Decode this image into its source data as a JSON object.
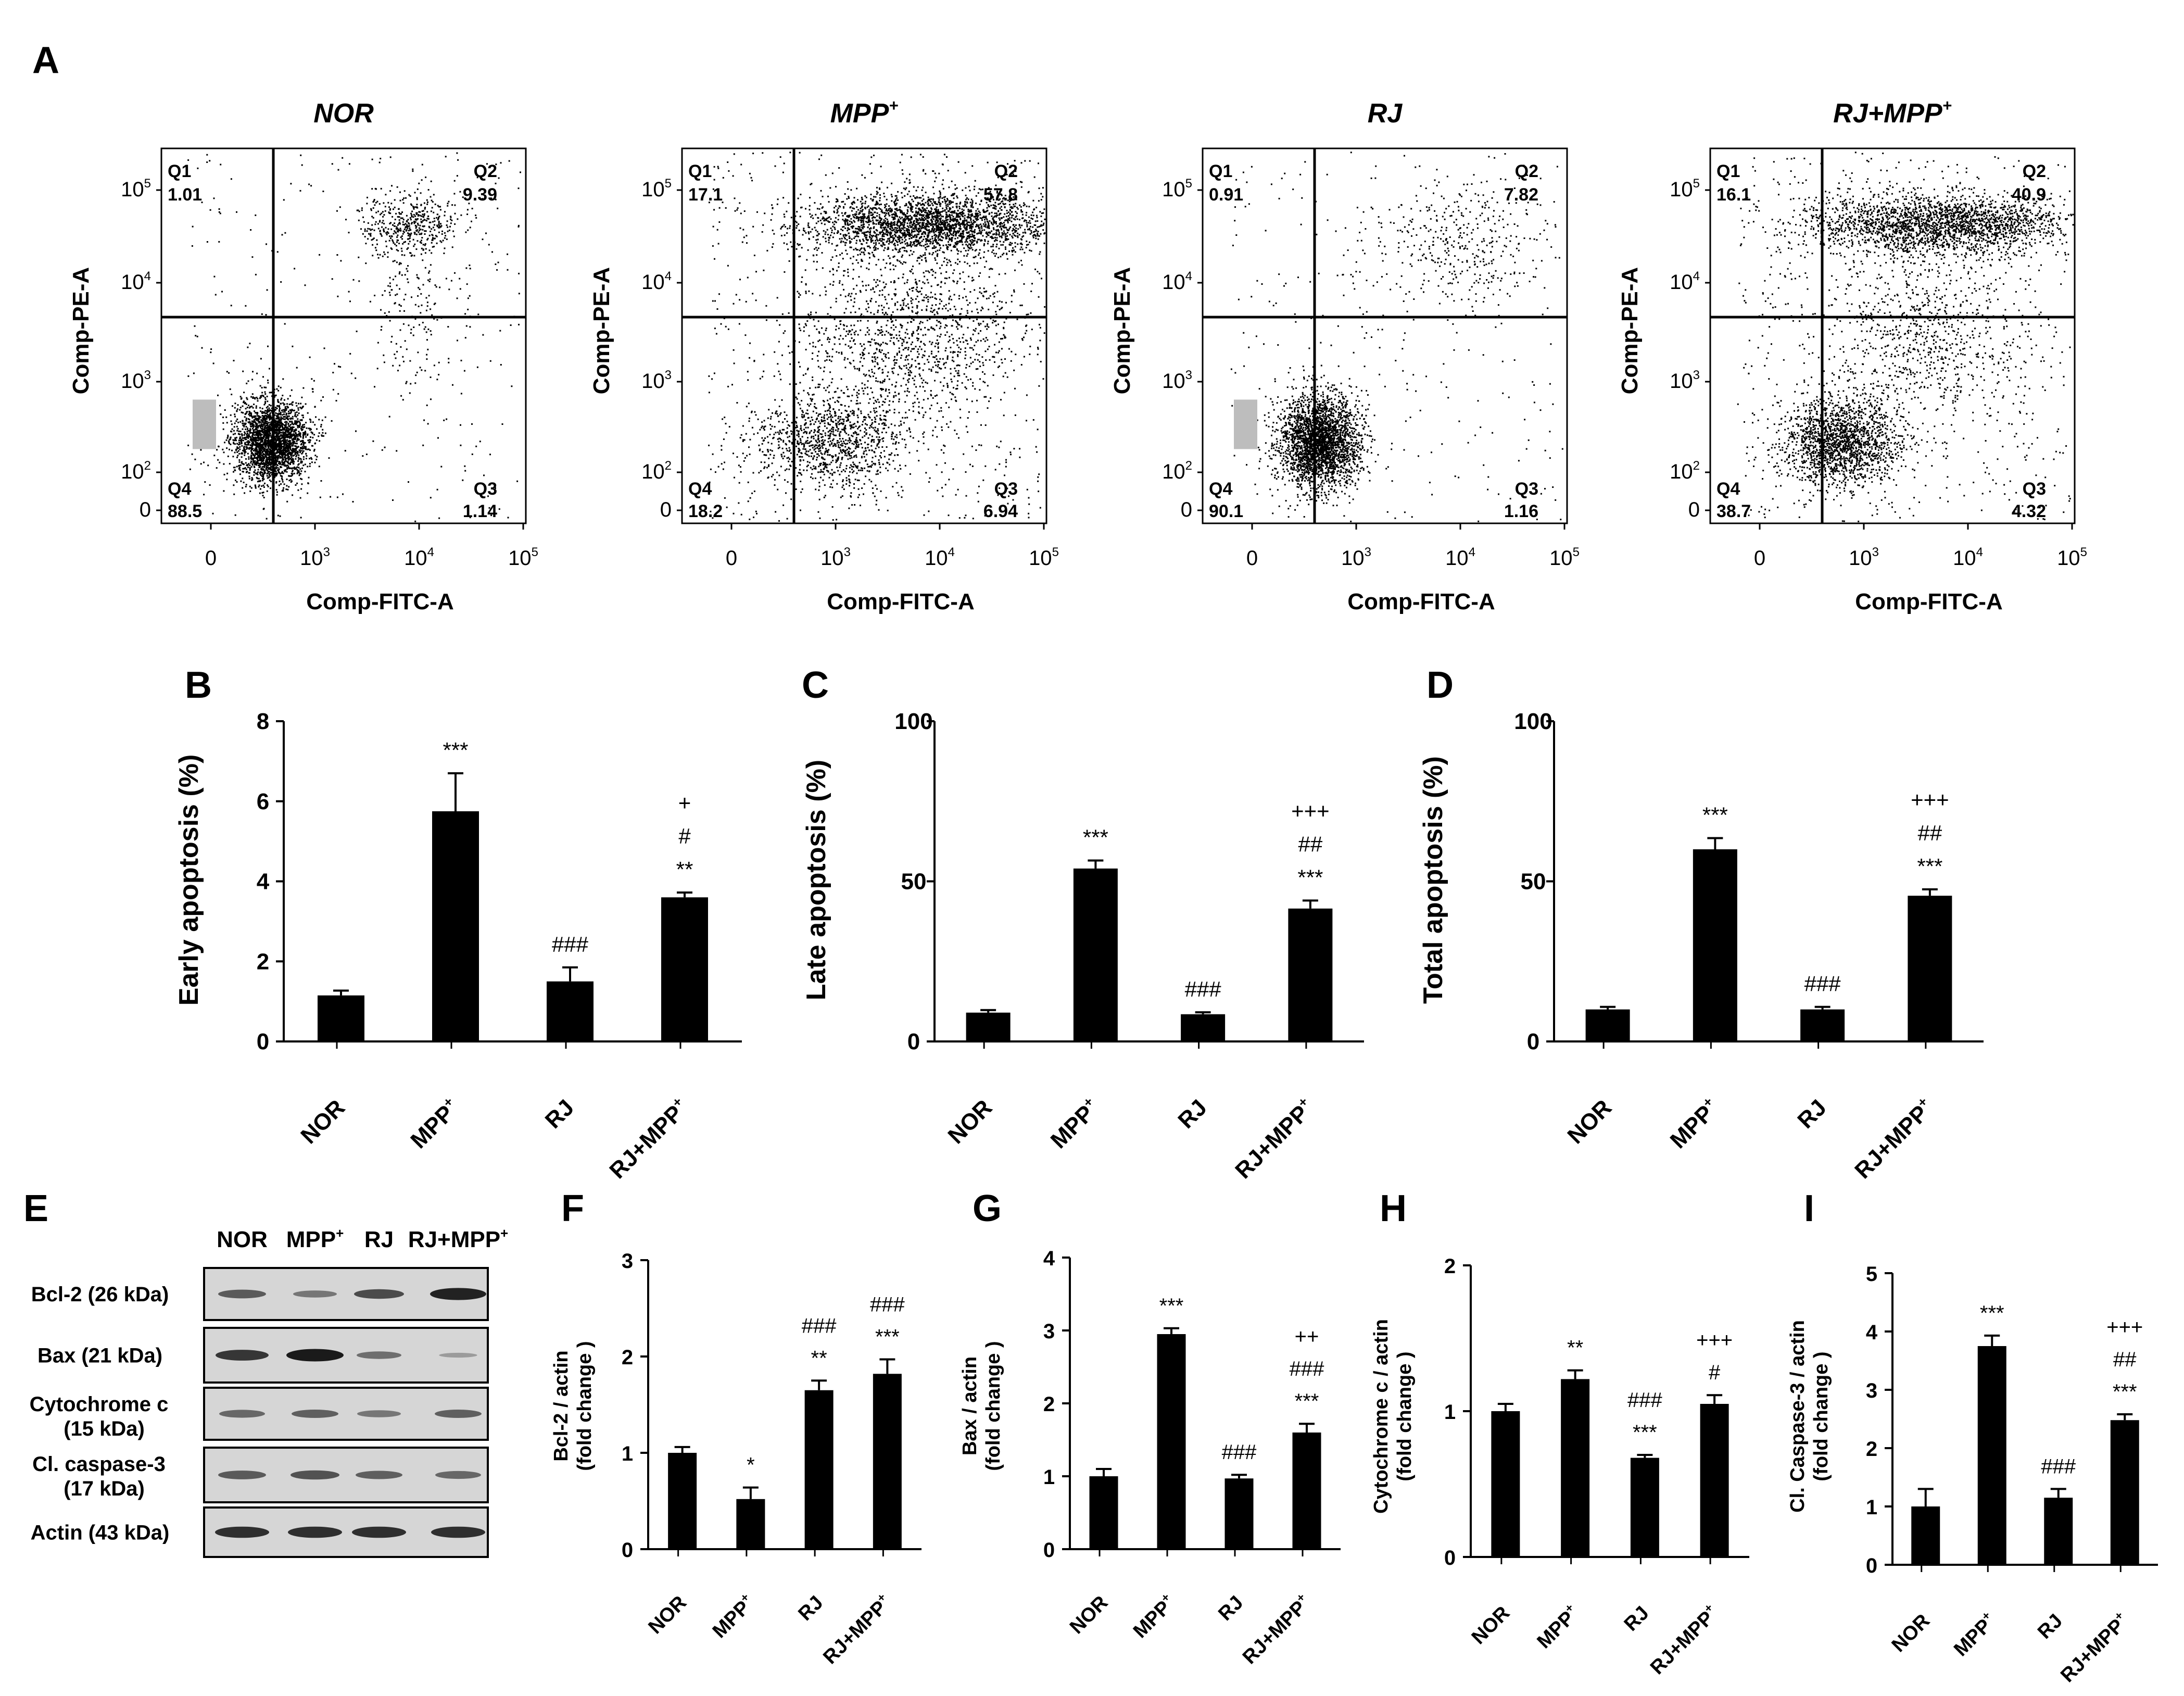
{
  "colors": {
    "ink": "#000000",
    "blot_bg": "#d6d6d6",
    "band": "#1a1a1a",
    "gate": "#bdbdbd"
  },
  "panel_letters": [
    "A",
    "B",
    "C",
    "D",
    "E",
    "F",
    "G",
    "H",
    "I"
  ],
  "flow": {
    "xlabel": "Comp-FITC-A",
    "ylabel": "Comp-PE-A",
    "xticks": [
      "0",
      "10",
      "10",
      "10"
    ],
    "xtick_sup": [
      "",
      "3",
      "4",
      "5"
    ],
    "yticks": [
      "10",
      "10",
      "10",
      "10",
      "0"
    ],
    "ytick_sup": [
      "5",
      "4",
      "3",
      "2",
      ""
    ],
    "quadrant_labels": [
      "Q1",
      "Q2",
      "Q3",
      "Q4"
    ],
    "plots": [
      {
        "title": "NOR",
        "title_sup": "",
        "Q1": "1.01",
        "Q2": "9.39",
        "Q3": "1.14",
        "Q4": "88.5",
        "clusters": [
          {
            "cx": 0.3,
            "cy": 0.78,
            "sx": 0.05,
            "sy": 0.055,
            "n": 2600,
            "grey": true
          },
          {
            "cx": 0.68,
            "cy": 0.2,
            "sx": 0.07,
            "sy": 0.04,
            "n": 450
          },
          {
            "cx": 0.68,
            "cy": 0.4,
            "sx": 0.06,
            "sy": 0.12,
            "n": 150
          }
        ],
        "noise": 300
      },
      {
        "title": "MPP",
        "title_sup": "+",
        "Q1": "17.1",
        "Q2": "57.8",
        "Q3": "6.94",
        "Q4": "18.2",
        "clusters": [
          {
            "cx": 0.68,
            "cy": 0.2,
            "sx": 0.17,
            "sy": 0.04,
            "n": 2600
          },
          {
            "cx": 0.4,
            "cy": 0.78,
            "sx": 0.1,
            "sy": 0.06,
            "n": 1000
          },
          {
            "cx": 0.62,
            "cy": 0.5,
            "sx": 0.15,
            "sy": 0.13,
            "n": 1200
          }
        ],
        "noise": 700
      },
      {
        "title": "RJ",
        "title_sup": "",
        "Q1": "0.91",
        "Q2": "7.82",
        "Q3": "1.16",
        "Q4": "90.1",
        "clusters": [
          {
            "cx": 0.32,
            "cy": 0.78,
            "sx": 0.055,
            "sy": 0.06,
            "n": 2700,
            "grey": true
          },
          {
            "cx": 0.7,
            "cy": 0.25,
            "sx": 0.12,
            "sy": 0.08,
            "n": 350
          }
        ],
        "noise": 300
      },
      {
        "title": "RJ+MPP",
        "title_sup": "+",
        "Q1": "16.1",
        "Q2": "40.9",
        "Q3": "4.32",
        "Q4": "38.7",
        "clusters": [
          {
            "cx": 0.62,
            "cy": 0.2,
            "sx": 0.18,
            "sy": 0.04,
            "n": 2300
          },
          {
            "cx": 0.36,
            "cy": 0.78,
            "sx": 0.08,
            "sy": 0.055,
            "n": 1700
          },
          {
            "cx": 0.58,
            "cy": 0.5,
            "sx": 0.14,
            "sy": 0.12,
            "n": 800
          }
        ],
        "noise": 600
      }
    ]
  },
  "western": {
    "lanes": [
      "NOR",
      "MPP",
      "RJ",
      "RJ+MPP"
    ],
    "lane_sup": [
      "",
      "+",
      "",
      "+"
    ],
    "rows": [
      {
        "label": "Bcl-2 (26 kDa)",
        "intensity": [
          0.55,
          0.35,
          0.65,
          0.95
        ]
      },
      {
        "label": "Bax (21 kDa)",
        "intensity": [
          0.8,
          1.0,
          0.4,
          0.08
        ]
      },
      {
        "label": "Cytochrome c",
        "label2": "(15 kDa)",
        "intensity": [
          0.45,
          0.5,
          0.35,
          0.5
        ]
      },
      {
        "label": "Cl. caspase-3",
        "label2": "(17 kDa)",
        "intensity": [
          0.55,
          0.6,
          0.5,
          0.45
        ]
      },
      {
        "label": "Actin (43 kDa)",
        "intensity": [
          0.85,
          0.85,
          0.85,
          0.85
        ]
      }
    ]
  },
  "chart_data": [
    {
      "id": "B",
      "type": "bar",
      "categories": [
        "NOR",
        "MPP",
        "RJ",
        "RJ+MPP"
      ],
      "category_sup": [
        "",
        "+",
        "",
        "+"
      ],
      "values": [
        1.15,
        5.75,
        1.5,
        3.6
      ],
      "errors": [
        0.12,
        0.95,
        0.35,
        0.12
      ],
      "ylabel": "Early apoptosis (%)",
      "ylim": [
        0,
        8
      ],
      "yticks": [
        0,
        2,
        4,
        6,
        8
      ],
      "annotations": [
        [],
        [
          "***"
        ],
        [
          "###"
        ],
        [
          "+",
          "#",
          "**"
        ]
      ]
    },
    {
      "id": "C",
      "type": "bar",
      "categories": [
        "NOR",
        "MPP",
        "RJ",
        "RJ+MPP"
      ],
      "category_sup": [
        "",
        "+",
        "",
        "+"
      ],
      "values": [
        9,
        54,
        8.5,
        41.5
      ],
      "errors": [
        0.8,
        2.5,
        0.6,
        2.5
      ],
      "ylabel": "Late apoptosis (%)",
      "ylim": [
        0,
        100
      ],
      "yticks": [
        0,
        50,
        100
      ],
      "annotations": [
        [],
        [
          "***"
        ],
        [
          "###"
        ],
        [
          "+++",
          "##",
          "***"
        ]
      ]
    },
    {
      "id": "D",
      "type": "bar",
      "categories": [
        "NOR",
        "MPP",
        "RJ",
        "RJ+MPP"
      ],
      "category_sup": [
        "",
        "+",
        "",
        "+"
      ],
      "values": [
        10,
        60,
        10,
        45.5
      ],
      "errors": [
        0.8,
        3.5,
        0.8,
        2.0
      ],
      "ylabel": "Total apoptosis (%)",
      "ylim": [
        0,
        100
      ],
      "yticks": [
        0,
        50,
        100
      ],
      "annotations": [
        [],
        [
          "***"
        ],
        [
          "###"
        ],
        [
          "+++",
          "##",
          "***"
        ]
      ]
    },
    {
      "id": "F",
      "type": "bar",
      "categories": [
        "NOR",
        "MPP",
        "RJ",
        "RJ+MPP"
      ],
      "category_sup": [
        "",
        "+",
        "",
        "+"
      ],
      "values": [
        1.0,
        0.52,
        1.65,
        1.82
      ],
      "errors": [
        0.06,
        0.12,
        0.1,
        0.15
      ],
      "ylabel": "Bcl-2 / actin",
      "ylabel2": "(fold change )",
      "ylim": [
        0,
        3
      ],
      "yticks": [
        0,
        1,
        2,
        3
      ],
      "annotations": [
        [],
        [
          "*"
        ],
        [
          "###",
          "**"
        ],
        [
          "###",
          "***"
        ]
      ]
    },
    {
      "id": "G",
      "type": "bar",
      "categories": [
        "NOR",
        "MPP",
        "RJ",
        "RJ+MPP"
      ],
      "category_sup": [
        "",
        "+",
        "",
        "+"
      ],
      "values": [
        1.0,
        2.95,
        0.97,
        1.6
      ],
      "errors": [
        0.1,
        0.08,
        0.05,
        0.12
      ],
      "ylabel": "Bax / actin",
      "ylabel2": "(fold change )",
      "ylim": [
        0,
        4
      ],
      "yticks": [
        0,
        1,
        2,
        3,
        4
      ],
      "annotations": [
        [],
        [
          "***"
        ],
        [
          "###"
        ],
        [
          "++",
          "###",
          "***"
        ]
      ]
    },
    {
      "id": "H",
      "type": "bar",
      "categories": [
        "NOR",
        "MPP",
        "RJ",
        "RJ+MPP"
      ],
      "category_sup": [
        "",
        "+",
        "",
        "+"
      ],
      "values": [
        1.0,
        1.22,
        0.68,
        1.05
      ],
      "errors": [
        0.05,
        0.06,
        0.02,
        0.06
      ],
      "ylabel": "Cytochrome c / actin",
      "ylabel2": "(fold change )",
      "ylim": [
        0,
        2
      ],
      "yticks": [
        0,
        1,
        2
      ],
      "annotations": [
        [],
        [
          "**"
        ],
        [
          "###",
          "***"
        ],
        [
          "+++",
          "#"
        ]
      ]
    },
    {
      "id": "I",
      "type": "bar",
      "categories": [
        "NOR",
        "MPP",
        "RJ",
        "RJ+MPP"
      ],
      "category_sup": [
        "",
        "+",
        "",
        "+"
      ],
      "values": [
        1.0,
        3.75,
        1.15,
        2.48
      ],
      "errors": [
        0.3,
        0.18,
        0.15,
        0.1
      ],
      "ylabel": "Cl. Caspase-3 / actin",
      "ylabel2": "(fold change )",
      "ylim": [
        0,
        5
      ],
      "yticks": [
        0,
        1,
        2,
        3,
        4,
        5
      ],
      "annotations": [
        [],
        [
          "***"
        ],
        [
          "###"
        ],
        [
          "+++",
          "##",
          "***"
        ]
      ]
    }
  ]
}
